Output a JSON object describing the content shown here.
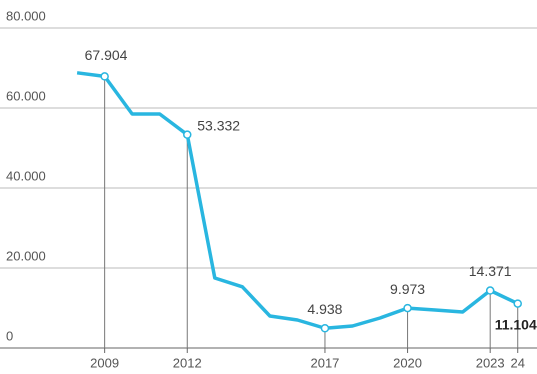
{
  "chart_data": {
    "type": "line",
    "x": [
      2008,
      2009,
      2010,
      2011,
      2012,
      2013,
      2014,
      2015,
      2016,
      2017,
      2018,
      2019,
      2020,
      2021,
      2022,
      2023,
      2024
    ],
    "series": [
      {
        "color": "#29b6e0",
        "values": [
          68800,
          67904,
          58500,
          58500,
          53332,
          17500,
          15300,
          8000,
          7000,
          4938,
          5500,
          7500,
          9973,
          9500,
          9000,
          14371,
          11104
        ],
        "value_labels": [
          null,
          "67.904",
          null,
          null,
          "53.332",
          null,
          null,
          null,
          null,
          "4.938",
          null,
          null,
          "9.973",
          null,
          null,
          "14.371",
          "11.104"
        ]
      }
    ],
    "xlim": [
      2005.2,
      2024.7
    ],
    "xticks": [
      2009,
      2012,
      2017,
      2020,
      2023,
      {
        "value": 2024,
        "label": "24"
      }
    ],
    "ylim": [
      0,
      80000
    ],
    "yticks": [
      0,
      {
        "value": 20000,
        "label": "20.000"
      },
      {
        "value": 40000,
        "label": "40.000"
      },
      {
        "value": 60000,
        "label": "60.000"
      },
      {
        "value": 80000,
        "label": "80.000"
      }
    ],
    "grid": true
  }
}
